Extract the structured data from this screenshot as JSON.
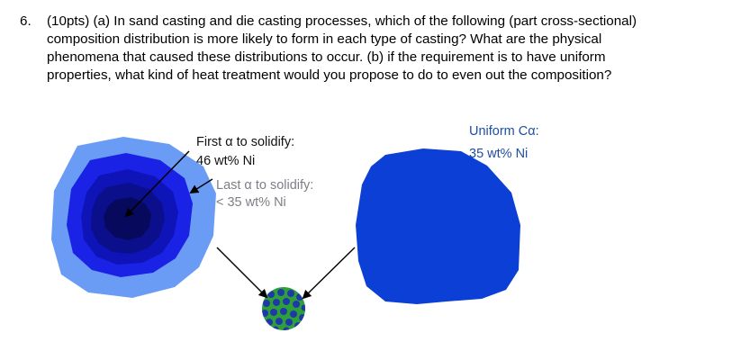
{
  "question": {
    "number": "6.",
    "lines": [
      "(10pts) (a) In sand casting and die casting processes, which of the following (part cross-sectional)",
      "composition distribution is more likely to form in each type of casting? What are the physical",
      "phenomena that caused these distributions to occur.    (b) if the requirement is to have uniform",
      "properties, what kind of heat treatment would you propose to do to even out the composition?"
    ]
  },
  "figure": {
    "first_label_1": "First α to solidify:",
    "first_label_2": "46 wt% Ni",
    "last_label_1": "Last α  to solidify:",
    "last_label_2": "< 35 wt% Ni",
    "uniform_label_1": "Uniform Cα:",
    "uniform_label_2": "35 wt% Ni",
    "colors": {
      "outer_ring": "#6a9cf5",
      "ring_2": "#1a22e6",
      "ring_3": "#0e14b8",
      "ring_4": "#0b0f8c",
      "core": "#070a5c",
      "uniform_blob": "#0c3fd6",
      "green": "#2f9f3a",
      "grain": "#1f3aa8"
    }
  }
}
